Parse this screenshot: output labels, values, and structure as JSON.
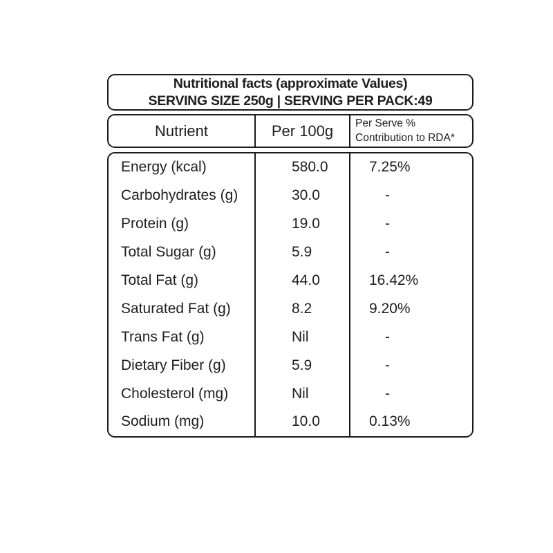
{
  "header": {
    "title": "Nutritional facts (approximate Values)",
    "subtitle": "SERVING SIZE 250g | SERVING PER PACK:49"
  },
  "table": {
    "columns": {
      "nutrient": "Nutrient",
      "per_100g": "Per 100g",
      "rda_line1": "Per Serve %",
      "rda_line2": "Contribution to RDA*"
    },
    "rows": [
      {
        "nutrient": "Energy (kcal)",
        "per_100g": "580.0",
        "rda": "7.25%"
      },
      {
        "nutrient": "Carbohydrates (g)",
        "per_100g": "30.0",
        "rda": "-"
      },
      {
        "nutrient": "Protein (g)",
        "per_100g": "19.0",
        "rda": "-"
      },
      {
        "nutrient": "Total Sugar (g)",
        "per_100g": "5.9",
        "rda": "-"
      },
      {
        "nutrient": "Total Fat (g)",
        "per_100g": "44.0",
        "rda": "16.42%"
      },
      {
        "nutrient": "Saturated Fat (g)",
        "per_100g": "8.2",
        "rda": "9.20%"
      },
      {
        "nutrient": "Trans Fat (g)",
        "per_100g": "Nil",
        "rda": "-"
      },
      {
        "nutrient": "Dietary Fiber (g)",
        "per_100g": "5.9",
        "rda": "-"
      },
      {
        "nutrient": "Cholesterol (mg)",
        "per_100g": "Nil",
        "rda": "-"
      },
      {
        "nutrient": "Sodium (mg)",
        "per_100g": "10.0",
        "rda": "0.13%"
      }
    ]
  },
  "colors": {
    "border": "#1a1a1a",
    "text": "#1d1d1d",
    "background": "#ffffff"
  }
}
